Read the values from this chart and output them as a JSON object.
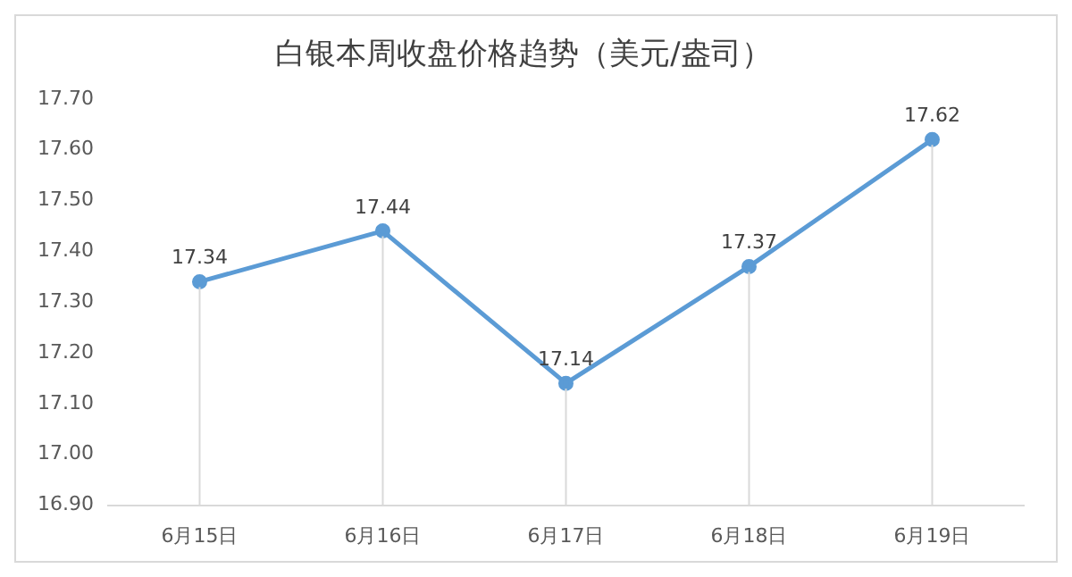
{
  "chart_data": {
    "type": "line",
    "title": "白银本周收盘价格趋势（美元/盎司）",
    "categories": [
      "6月15日",
      "6月16日",
      "6月17日",
      "6月18日",
      "6月19日"
    ],
    "series": [
      {
        "color": "#5b9bd5",
        "values": [
          17.34,
          17.44,
          17.14,
          17.37,
          17.62
        ]
      }
    ],
    "ylim": [
      16.9,
      17.7
    ],
    "yticks": [
      {
        "value": 16.9,
        "label": "16.90"
      },
      {
        "value": 17.0,
        "label": "17.00"
      },
      {
        "value": 17.1,
        "label": "17.10"
      },
      {
        "value": 17.2,
        "label": "17.20"
      },
      {
        "value": 17.3,
        "label": "17.30"
      },
      {
        "value": 17.4,
        "label": "17.40"
      },
      {
        "value": 17.5,
        "label": "17.50"
      },
      {
        "value": 17.6,
        "label": "17.60"
      },
      {
        "value": 17.7,
        "label": "17.70"
      }
    ],
    "grid": "x",
    "legend": false,
    "marker": "circle",
    "line_style": "solid",
    "data_labels": true
  }
}
